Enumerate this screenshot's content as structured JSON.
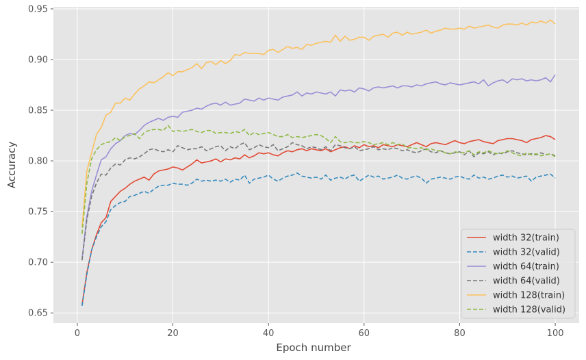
{
  "chart_data": {
    "type": "line",
    "xlabel": "Epoch number",
    "ylabel": "Accuracy",
    "xlim": [
      -5,
      105
    ],
    "ylim": [
      0.64,
      0.952
    ],
    "xticks": [
      0,
      20,
      40,
      60,
      80,
      100
    ],
    "yticks": [
      0.65,
      0.7,
      0.75,
      0.8,
      0.85,
      0.9,
      0.95
    ],
    "grid": true,
    "legend_position": "lower-right",
    "style": "ggplot",
    "series": [
      {
        "name": "width 32(train)",
        "color": "#E24A33",
        "dash": "solid",
        "values": [
          0.658,
          0.69,
          0.712,
          0.727,
          0.739,
          0.744,
          0.76,
          0.765,
          0.77,
          0.773,
          0.777,
          0.78,
          0.782,
          0.784,
          0.781,
          0.787,
          0.79,
          0.791,
          0.792,
          0.794,
          0.793,
          0.791,
          0.794,
          0.797,
          0.801,
          0.798,
          0.799,
          0.8,
          0.802,
          0.799,
          0.802,
          0.801,
          0.803,
          0.802,
          0.806,
          0.803,
          0.805,
          0.808,
          0.807,
          0.808,
          0.806,
          0.805,
          0.808,
          0.81,
          0.809,
          0.811,
          0.812,
          0.81,
          0.812,
          0.811,
          0.81,
          0.812,
          0.809,
          0.811,
          0.813,
          0.814,
          0.812,
          0.815,
          0.813,
          0.816,
          0.814,
          0.815,
          0.813,
          0.816,
          0.815,
          0.814,
          0.816,
          0.815,
          0.814,
          0.816,
          0.818,
          0.816,
          0.814,
          0.817,
          0.818,
          0.817,
          0.816,
          0.818,
          0.82,
          0.818,
          0.817,
          0.819,
          0.82,
          0.821,
          0.819,
          0.818,
          0.817,
          0.82,
          0.821,
          0.822,
          0.822,
          0.821,
          0.82,
          0.818,
          0.821,
          0.822,
          0.823,
          0.825,
          0.824,
          0.821
        ]
      },
      {
        "name": "width 32(valid)",
        "color": "#348ABD",
        "dash": "dashed",
        "values": [
          0.657,
          0.688,
          0.712,
          0.725,
          0.735,
          0.74,
          0.752,
          0.756,
          0.759,
          0.76,
          0.765,
          0.766,
          0.768,
          0.77,
          0.768,
          0.772,
          0.775,
          0.776,
          0.776,
          0.778,
          0.777,
          0.777,
          0.776,
          0.778,
          0.782,
          0.78,
          0.781,
          0.78,
          0.781,
          0.78,
          0.782,
          0.779,
          0.782,
          0.781,
          0.786,
          0.778,
          0.782,
          0.783,
          0.784,
          0.786,
          0.782,
          0.78,
          0.783,
          0.785,
          0.786,
          0.788,
          0.785,
          0.784,
          0.783,
          0.784,
          0.782,
          0.786,
          0.781,
          0.783,
          0.784,
          0.782,
          0.785,
          0.786,
          0.78,
          0.783,
          0.786,
          0.784,
          0.785,
          0.782,
          0.783,
          0.784,
          0.786,
          0.783,
          0.782,
          0.784,
          0.785,
          0.783,
          0.778,
          0.782,
          0.783,
          0.784,
          0.783,
          0.782,
          0.784,
          0.785,
          0.783,
          0.782,
          0.786,
          0.783,
          0.784,
          0.782,
          0.783,
          0.785,
          0.786,
          0.784,
          0.785,
          0.783,
          0.784,
          0.785,
          0.78,
          0.784,
          0.785,
          0.786,
          0.787,
          0.783
        ]
      },
      {
        "name": "width 64(train)",
        "color": "#988ED5",
        "dash": "solid",
        "values": [
          0.703,
          0.745,
          0.77,
          0.786,
          0.801,
          0.804,
          0.812,
          0.817,
          0.82,
          0.825,
          0.827,
          0.826,
          0.83,
          0.835,
          0.838,
          0.84,
          0.842,
          0.84,
          0.843,
          0.844,
          0.843,
          0.848,
          0.849,
          0.85,
          0.852,
          0.851,
          0.854,
          0.856,
          0.857,
          0.855,
          0.858,
          0.855,
          0.856,
          0.857,
          0.861,
          0.86,
          0.859,
          0.862,
          0.86,
          0.862,
          0.861,
          0.86,
          0.863,
          0.864,
          0.865,
          0.868,
          0.864,
          0.867,
          0.866,
          0.868,
          0.867,
          0.866,
          0.868,
          0.864,
          0.87,
          0.869,
          0.87,
          0.868,
          0.872,
          0.871,
          0.869,
          0.872,
          0.873,
          0.872,
          0.873,
          0.874,
          0.872,
          0.874,
          0.874,
          0.873,
          0.875,
          0.874,
          0.876,
          0.877,
          0.878,
          0.876,
          0.875,
          0.877,
          0.876,
          0.875,
          0.876,
          0.877,
          0.878,
          0.876,
          0.88,
          0.874,
          0.877,
          0.879,
          0.88,
          0.877,
          0.881,
          0.88,
          0.881,
          0.879,
          0.88,
          0.879,
          0.88,
          0.882,
          0.878,
          0.885
        ]
      },
      {
        "name": "width 64(valid)",
        "color": "#777777",
        "dash": "dashed",
        "values": [
          0.702,
          0.742,
          0.765,
          0.778,
          0.787,
          0.786,
          0.793,
          0.797,
          0.796,
          0.801,
          0.803,
          0.802,
          0.804,
          0.807,
          0.811,
          0.812,
          0.81,
          0.809,
          0.811,
          0.809,
          0.815,
          0.813,
          0.811,
          0.812,
          0.812,
          0.814,
          0.81,
          0.812,
          0.814,
          0.815,
          0.81,
          0.814,
          0.812,
          0.816,
          0.818,
          0.811,
          0.813,
          0.816,
          0.814,
          0.813,
          0.816,
          0.81,
          0.812,
          0.814,
          0.818,
          0.816,
          0.815,
          0.812,
          0.814,
          0.813,
          0.811,
          0.814,
          0.81,
          0.816,
          0.815,
          0.813,
          0.812,
          0.814,
          0.81,
          0.811,
          0.812,
          0.814,
          0.811,
          0.812,
          0.811,
          0.813,
          0.812,
          0.81,
          0.811,
          0.809,
          0.808,
          0.81,
          0.812,
          0.809,
          0.808,
          0.81,
          0.808,
          0.807,
          0.808,
          0.809,
          0.806,
          0.81,
          0.804,
          0.808,
          0.807,
          0.809,
          0.806,
          0.808,
          0.807,
          0.809,
          0.81,
          0.808,
          0.807,
          0.806,
          0.807,
          0.806,
          0.808,
          0.806,
          0.807,
          0.805
        ]
      },
      {
        "name": "width 128(train)",
        "color": "#FBC15E",
        "dash": "solid",
        "values": [
          0.735,
          0.79,
          0.808,
          0.826,
          0.833,
          0.845,
          0.848,
          0.857,
          0.857,
          0.862,
          0.86,
          0.866,
          0.871,
          0.874,
          0.878,
          0.877,
          0.88,
          0.883,
          0.887,
          0.884,
          0.888,
          0.888,
          0.89,
          0.892,
          0.896,
          0.891,
          0.897,
          0.898,
          0.895,
          0.899,
          0.896,
          0.899,
          0.905,
          0.904,
          0.907,
          0.906,
          0.906,
          0.906,
          0.905,
          0.909,
          0.91,
          0.907,
          0.91,
          0.913,
          0.911,
          0.912,
          0.91,
          0.915,
          0.914,
          0.916,
          0.917,
          0.918,
          0.917,
          0.924,
          0.918,
          0.923,
          0.919,
          0.92,
          0.922,
          0.922,
          0.919,
          0.923,
          0.924,
          0.925,
          0.922,
          0.926,
          0.927,
          0.924,
          0.927,
          0.925,
          0.926,
          0.927,
          0.929,
          0.926,
          0.928,
          0.929,
          0.931,
          0.93,
          0.93,
          0.931,
          0.93,
          0.933,
          0.931,
          0.932,
          0.933,
          0.934,
          0.932,
          0.931,
          0.934,
          0.935,
          0.935,
          0.934,
          0.936,
          0.934,
          0.937,
          0.936,
          0.938,
          0.936,
          0.939,
          0.935
        ]
      },
      {
        "name": "width 128(valid)",
        "color": "#8EBA42",
        "dash": "dashed",
        "values": [
          0.728,
          0.778,
          0.802,
          0.811,
          0.816,
          0.818,
          0.819,
          0.823,
          0.82,
          0.824,
          0.825,
          0.827,
          0.822,
          0.828,
          0.83,
          0.831,
          0.831,
          0.83,
          0.835,
          0.829,
          0.83,
          0.829,
          0.83,
          0.831,
          0.829,
          0.828,
          0.83,
          0.83,
          0.827,
          0.828,
          0.828,
          0.827,
          0.829,
          0.828,
          0.831,
          0.825,
          0.828,
          0.826,
          0.827,
          0.828,
          0.826,
          0.824,
          0.824,
          0.826,
          0.823,
          0.824,
          0.823,
          0.824,
          0.825,
          0.826,
          0.825,
          0.822,
          0.818,
          0.824,
          0.819,
          0.818,
          0.819,
          0.818,
          0.818,
          0.819,
          0.818,
          0.816,
          0.817,
          0.818,
          0.816,
          0.818,
          0.816,
          0.817,
          0.813,
          0.813,
          0.812,
          0.813,
          0.811,
          0.812,
          0.81,
          0.81,
          0.808,
          0.807,
          0.809,
          0.808,
          0.808,
          0.81,
          0.806,
          0.809,
          0.808,
          0.81,
          0.808,
          0.807,
          0.808,
          0.81,
          0.808,
          0.806,
          0.805,
          0.808,
          0.806,
          0.807,
          0.805,
          0.806,
          0.807,
          0.804
        ]
      }
    ]
  }
}
